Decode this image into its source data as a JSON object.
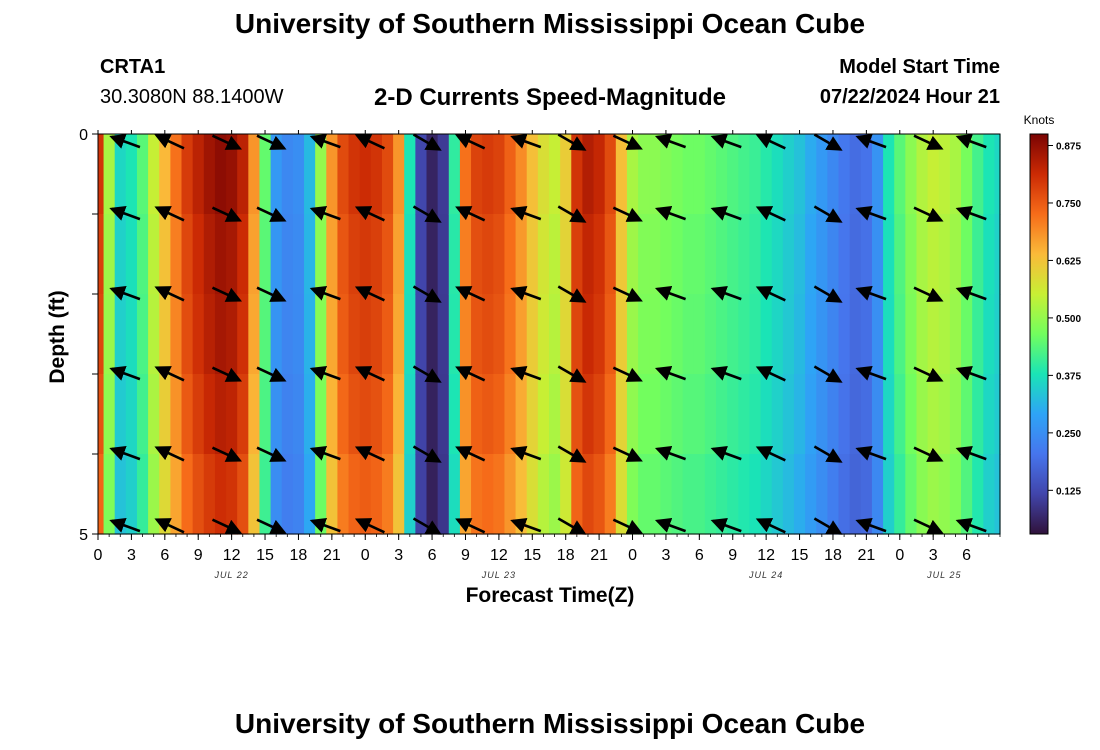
{
  "page": {
    "title_top": "University of Southern Mississippi Ocean Cube",
    "title_bottom": "University of Southern Mississippi Ocean Cube",
    "station": {
      "id": "CRTA1",
      "coords": "30.3080N  88.1400W"
    },
    "model": {
      "label": "Model Start Time",
      "datetime": "07/22/2024 Hour 21"
    }
  },
  "chart_data": {
    "type": "heatmap",
    "title": "2-D Currents Speed-Magnitude",
    "xlabel": "Forecast Time(Z)",
    "ylabel": "Depth (ft)",
    "colorbar_label": "Knots",
    "colorbar_ticks": [
      "0.875",
      "0.750",
      "0.625",
      "0.500",
      "0.375",
      "0.250",
      "0.125"
    ],
    "colorbar_tick_values": [
      0.875,
      0.75,
      0.625,
      0.5,
      0.375,
      0.25,
      0.125
    ],
    "vrange": [
      0.03,
      0.9
    ],
    "x_range_hours": [
      0,
      81
    ],
    "y_range_ft": [
      0,
      5
    ],
    "y_ticks": [
      {
        "v": 0,
        "label": "0"
      },
      {
        "v": 5,
        "label": "5"
      }
    ],
    "x_ticks": [
      {
        "h": 0,
        "label": "0"
      },
      {
        "h": 3,
        "label": "3"
      },
      {
        "h": 6,
        "label": "6"
      },
      {
        "h": 9,
        "label": "9"
      },
      {
        "h": 12,
        "label": "12"
      },
      {
        "h": 15,
        "label": "15"
      },
      {
        "h": 18,
        "label": "18"
      },
      {
        "h": 21,
        "label": "21"
      },
      {
        "h": 24,
        "label": "0"
      },
      {
        "h": 27,
        "label": "3"
      },
      {
        "h": 30,
        "label": "6"
      },
      {
        "h": 33,
        "label": "9"
      },
      {
        "h": 36,
        "label": "12"
      },
      {
        "h": 39,
        "label": "15"
      },
      {
        "h": 42,
        "label": "18"
      },
      {
        "h": 45,
        "label": "21"
      },
      {
        "h": 48,
        "label": "0"
      },
      {
        "h": 51,
        "label": "3"
      },
      {
        "h": 54,
        "label": "6"
      },
      {
        "h": 57,
        "label": "9"
      },
      {
        "h": 60,
        "label": "12"
      },
      {
        "h": 63,
        "label": "15"
      },
      {
        "h": 66,
        "label": "18"
      },
      {
        "h": 69,
        "label": "21"
      },
      {
        "h": 72,
        "label": "0"
      },
      {
        "h": 75,
        "label": "3"
      },
      {
        "h": 78,
        "label": "6"
      }
    ],
    "date_labels": [
      {
        "h": 12,
        "label": "JUL 22"
      },
      {
        "h": 36,
        "label": "JUL 23"
      },
      {
        "h": 60,
        "label": "JUL 24"
      },
      {
        "h": 76,
        "label": "JUL 25"
      }
    ],
    "speed_profile_knots": [
      [
        0,
        0.8
      ],
      [
        1,
        0.52
      ],
      [
        2,
        0.36
      ],
      [
        3,
        0.38
      ],
      [
        4,
        0.44
      ],
      [
        5,
        0.55
      ],
      [
        6,
        0.64
      ],
      [
        7,
        0.72
      ],
      [
        8,
        0.79
      ],
      [
        9,
        0.83
      ],
      [
        10,
        0.86
      ],
      [
        11,
        0.88
      ],
      [
        12,
        0.87
      ],
      [
        13,
        0.83
      ],
      [
        14,
        0.68
      ],
      [
        15,
        0.45
      ],
      [
        16,
        0.27
      ],
      [
        17,
        0.24
      ],
      [
        18,
        0.25
      ],
      [
        19,
        0.32
      ],
      [
        20,
        0.5
      ],
      [
        21,
        0.68
      ],
      [
        22,
        0.77
      ],
      [
        23,
        0.8
      ],
      [
        24,
        0.81
      ],
      [
        25,
        0.8
      ],
      [
        26,
        0.77
      ],
      [
        27,
        0.68
      ],
      [
        28,
        0.38
      ],
      [
        29,
        0.12
      ],
      [
        30,
        0.06
      ],
      [
        31,
        0.1
      ],
      [
        32,
        0.4
      ],
      [
        33,
        0.72
      ],
      [
        34,
        0.78
      ],
      [
        35,
        0.79
      ],
      [
        36,
        0.78
      ],
      [
        37,
        0.74
      ],
      [
        38,
        0.69
      ],
      [
        39,
        0.63
      ],
      [
        40,
        0.58
      ],
      [
        41,
        0.55
      ],
      [
        42,
        0.61
      ],
      [
        43,
        0.8
      ],
      [
        44,
        0.84
      ],
      [
        45,
        0.82
      ],
      [
        46,
        0.77
      ],
      [
        47,
        0.63
      ],
      [
        48,
        0.52
      ],
      [
        49,
        0.49
      ],
      [
        50,
        0.49
      ],
      [
        51,
        0.48
      ],
      [
        52,
        0.47
      ],
      [
        53,
        0.46
      ],
      [
        54,
        0.46
      ],
      [
        55,
        0.45
      ],
      [
        56,
        0.44
      ],
      [
        57,
        0.43
      ],
      [
        58,
        0.42
      ],
      [
        59,
        0.41
      ],
      [
        60,
        0.39
      ],
      [
        61,
        0.37
      ],
      [
        62,
        0.35
      ],
      [
        63,
        0.33
      ],
      [
        64,
        0.3
      ],
      [
        65,
        0.27
      ],
      [
        66,
        0.24
      ],
      [
        67,
        0.21
      ],
      [
        68,
        0.19
      ],
      [
        69,
        0.2
      ],
      [
        70,
        0.26
      ],
      [
        71,
        0.38
      ],
      [
        72,
        0.44
      ],
      [
        73,
        0.49
      ],
      [
        74,
        0.53
      ],
      [
        75,
        0.55
      ],
      [
        76,
        0.54
      ],
      [
        77,
        0.52
      ],
      [
        78,
        0.47
      ],
      [
        79,
        0.42
      ],
      [
        80,
        0.38
      ],
      [
        81,
        0.36
      ]
    ],
    "arrow_hours": [
      2.5,
      6.5,
      11.5,
      15.5,
      20.5,
      24.5,
      29.5,
      33.5,
      38.5,
      42.5,
      47.5,
      51.5,
      56.5,
      60.5,
      65.5,
      69.5,
      74.5,
      78.5
    ],
    "arrow_depths_ft": [
      0.1,
      1.0,
      2.0,
      3.0,
      4.0,
      4.9
    ],
    "arrow_direction_deg": [
      160,
      160,
      160,
      160,
      160,
      160,
      155,
      155,
      155,
      155,
      155,
      155,
      335,
      335,
      335,
      335,
      335,
      335,
      335,
      335,
      335,
      335,
      335,
      335,
      160,
      160,
      160,
      160,
      160,
      160,
      155,
      155,
      155,
      155,
      155,
      155,
      330,
      330,
      330,
      330,
      330,
      330,
      155,
      155,
      155,
      155,
      155,
      155,
      160,
      160,
      160,
      160,
      160,
      160,
      330,
      330,
      330,
      330,
      330,
      330,
      335,
      335,
      335,
      335,
      335,
      335,
      160,
      160,
      160,
      160,
      160,
      160,
      160,
      160,
      160,
      160,
      160,
      160,
      155,
      155,
      155,
      155,
      155,
      155,
      330,
      330,
      330,
      330,
      330,
      330,
      160,
      160,
      160,
      160,
      160,
      160,
      335,
      335,
      335,
      335,
      335,
      335,
      160,
      160,
      160,
      160,
      160,
      160
    ]
  }
}
